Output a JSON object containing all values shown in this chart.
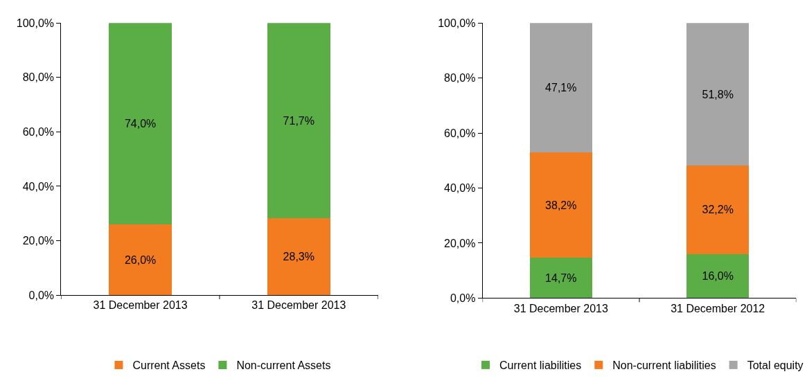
{
  "chart_data": [
    {
      "type": "bar",
      "stacked": true,
      "categories": [
        "31 December 2013",
        "31 December 2013"
      ],
      "series": [
        {
          "name": "Current Assets",
          "color": "#f47c20",
          "values": [
            26.0,
            28.3
          ],
          "value_labels": [
            "26,0%",
            "28,3%"
          ]
        },
        {
          "name": "Non-current Assets",
          "color": "#5aae45",
          "values": [
            74.0,
            71.7
          ],
          "value_labels": [
            "74,0%",
            "71,7%"
          ]
        }
      ],
      "ylim": [
        0,
        100
      ],
      "yticks": [
        {
          "value": 0,
          "label": "0,0%"
        },
        {
          "value": 20,
          "label": "20,0%"
        },
        {
          "value": 40,
          "label": "40,0%"
        },
        {
          "value": 60,
          "label": "60,0%"
        },
        {
          "value": 80,
          "label": "80,0%"
        },
        {
          "value": 100,
          "label": "100,0%"
        }
      ],
      "legend": "bottom"
    },
    {
      "type": "bar",
      "stacked": true,
      "categories": [
        "31 December 2013",
        "31 December 2012"
      ],
      "series": [
        {
          "name": "Current liabilities",
          "color": "#5aae45",
          "values": [
            14.7,
            16.0
          ],
          "value_labels": [
            "14,7%",
            "16,0%"
          ]
        },
        {
          "name": "Non-current liabilities",
          "color": "#f47c20",
          "values": [
            38.2,
            32.2
          ],
          "value_labels": [
            "38,2%",
            "32,2%"
          ]
        },
        {
          "name": "Total equity",
          "color": "#a6a6a6",
          "values": [
            47.1,
            51.8
          ],
          "value_labels": [
            "47,1%",
            "51,8%"
          ]
        }
      ],
      "ylim": [
        0,
        100
      ],
      "yticks": [
        {
          "value": 0,
          "label": "0,0%"
        },
        {
          "value": 20,
          "label": "20,0%"
        },
        {
          "value": 40,
          "label": "40,0%"
        },
        {
          "value": 60,
          "label": "60,0%"
        },
        {
          "value": 80,
          "label": "80,0%"
        },
        {
          "value": 100,
          "label": "100,0%"
        }
      ],
      "legend": "bottom"
    }
  ]
}
